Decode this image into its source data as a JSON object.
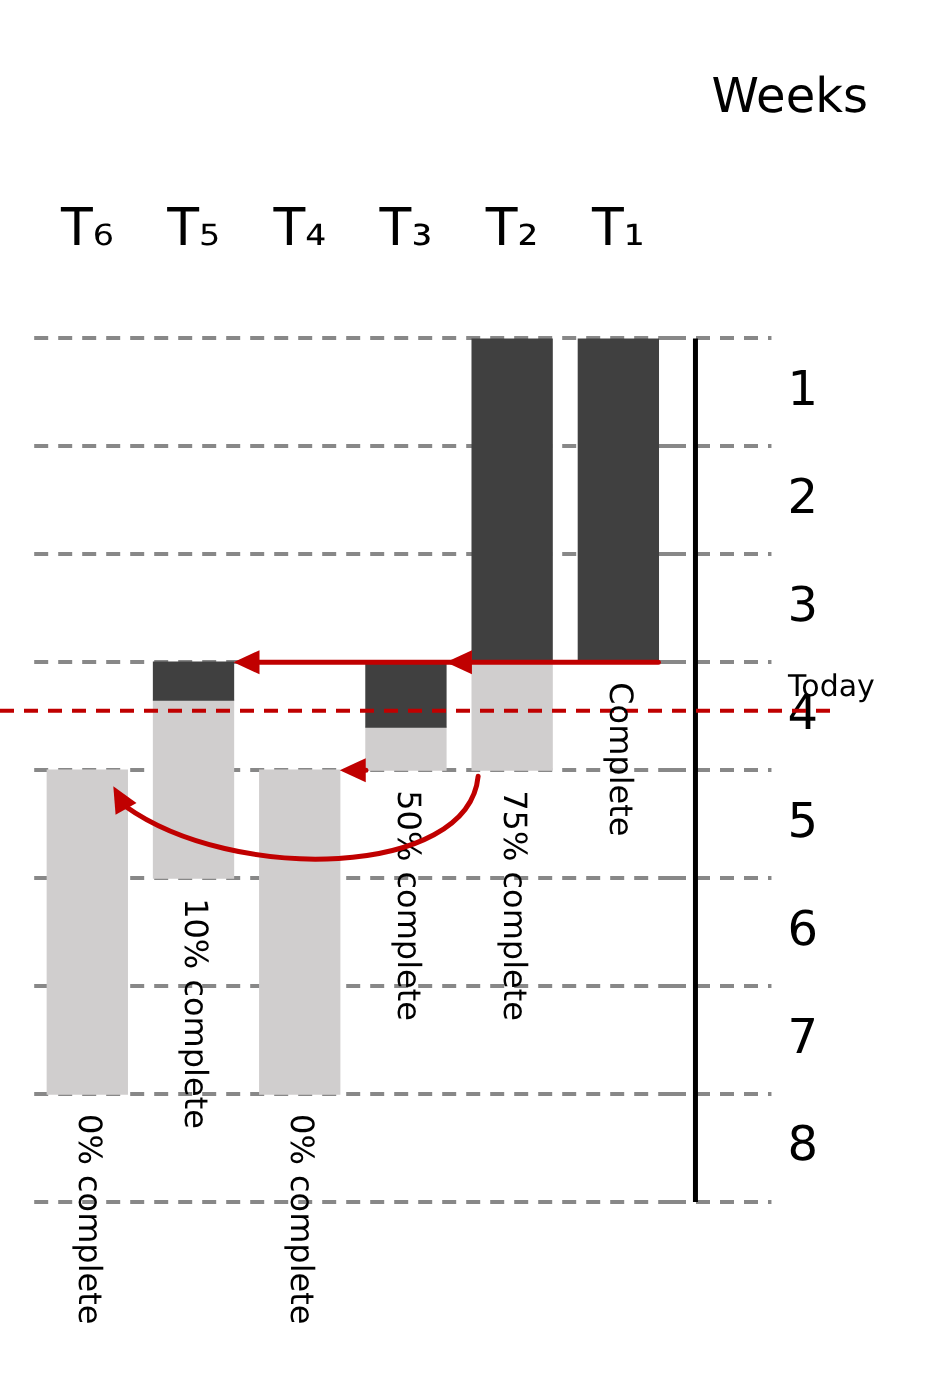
{
  "chart_data": {
    "type": "bar",
    "ylabel": "Weeks",
    "categories": [
      "T₆",
      "T₅",
      "T₄",
      "T₃",
      "T₂",
      "T₁"
    ],
    "series": [
      {
        "color": "#404040",
        "base": [
          null,
          3.5,
          null,
          3.5,
          0.5,
          0.5
        ],
        "values": [
          null,
          0.35,
          null,
          0.6,
          3,
          3
        ]
      },
      {
        "color": "#d0cece",
        "base": [
          4.5,
          3.85,
          4.5,
          4.1,
          3.5,
          null
        ],
        "values": [
          3,
          1.65,
          3,
          0.4,
          1,
          null
        ]
      }
    ],
    "ylim": [
      8.5,
      0.5
    ],
    "yticks": [
      {
        "value": 0.5,
        "label": null
      },
      1,
      {
        "value": 1.5,
        "label": null
      },
      2,
      {
        "value": 2.5,
        "label": null
      },
      3,
      {
        "value": 3.5,
        "label": null
      },
      4,
      {
        "value": 4.5,
        "label": null
      },
      5,
      {
        "value": 5.5,
        "label": null
      },
      6,
      {
        "value": 6.5,
        "label": null
      },
      7,
      {
        "value": 7.5,
        "label": null
      },
      8,
      {
        "value": 8.5,
        "label": null
      }
    ],
    "grid": "y",
    "ref_lines": [
      {
        "axis": "y",
        "value": 3.95,
        "label": "Today",
        "color": "#c00000",
        "line_style": "dashed"
      }
    ],
    "annotations": [
      {
        "text": "0% complete",
        "x": "T₆",
        "y": 7.5
      },
      {
        "text": "10% complete",
        "x": "T₅",
        "y": 5.5
      },
      {
        "text": "0% complete",
        "x": "T₄",
        "y": 7.5
      },
      {
        "text": "50% complete",
        "x": "T₃",
        "y": 4.5
      },
      {
        "text": "75% complete",
        "x": "T₂",
        "y": 4.5
      },
      {
        "text": "Complete",
        "x": "T₁",
        "y": 3.5
      }
    ]
  }
}
